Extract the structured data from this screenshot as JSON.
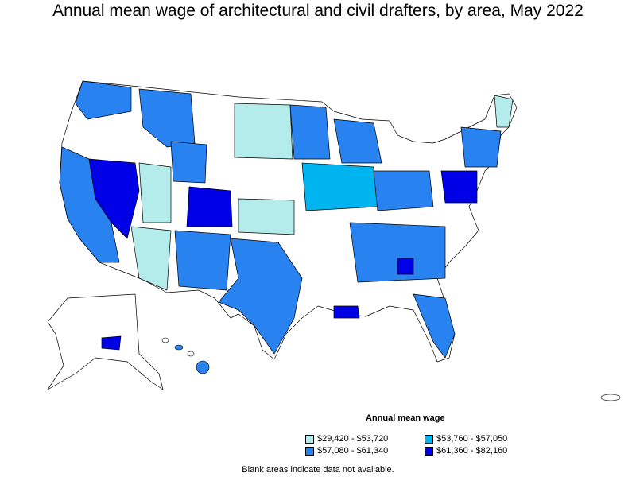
{
  "title": "Annual mean wage of architectural and civil drafters, by area, May 2022",
  "legend": {
    "title": "Annual mean wage",
    "items": [
      {
        "label": "$29,420 - $53,720",
        "color": "#b4ecec"
      },
      {
        "label": "$53,760 - $57,050",
        "color": "#00b4f0"
      },
      {
        "label": "$57,080 - $61,340",
        "color": "#2882f0"
      },
      {
        "label": "$61,360 - $82,160",
        "color": "#0000e6"
      }
    ]
  },
  "note": "Blank areas indicate data not available.",
  "colors": {
    "outline": "#000000",
    "no_data": "#ffffff"
  }
}
